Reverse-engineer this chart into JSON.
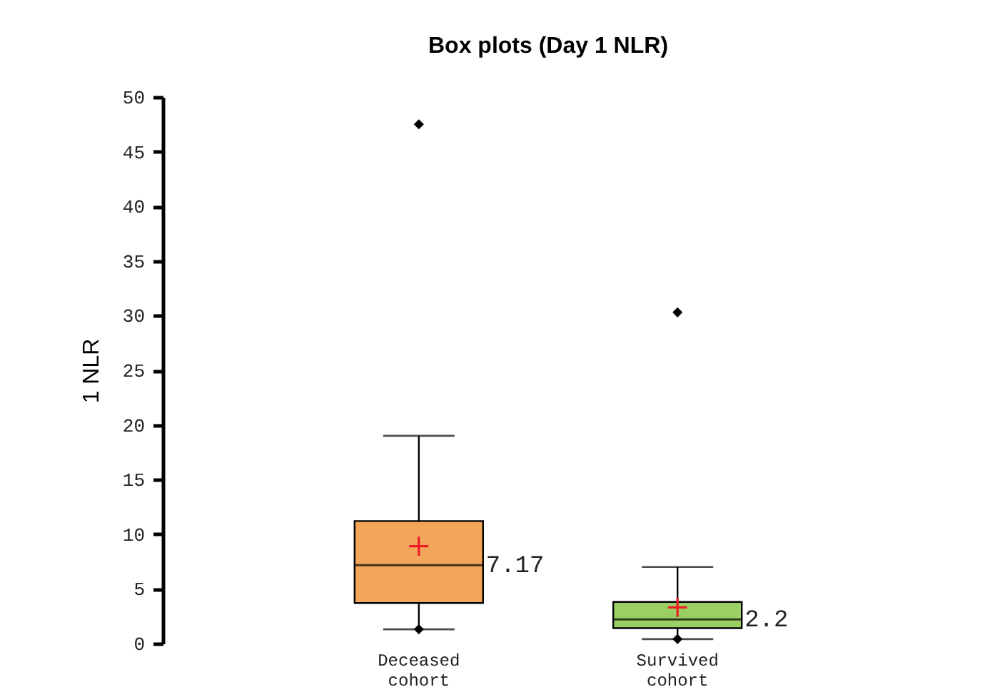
{
  "chart_data": {
    "type": "box",
    "title": "Box plots (Day 1 NLR)",
    "ylabel": "1 NLR",
    "categories": [
      "Deceased cohort",
      "Survived cohort"
    ],
    "colors": [
      "#f2a65a",
      "#9bcf63"
    ],
    "boxes": [
      {
        "low": 1.3,
        "q1": 3.7,
        "median": 7.17,
        "q3": 11.2,
        "high": 19,
        "mean": 8.9,
        "outliers": [
          1.3,
          47.5
        ]
      },
      {
        "low": 0.4,
        "q1": 1.4,
        "median": 2.2,
        "q3": 3.8,
        "high": 7,
        "mean": 3.3,
        "outliers": [
          0.4,
          30.3
        ]
      }
    ],
    "ylim": [
      0,
      50
    ],
    "yticks": [
      0,
      5,
      10,
      15,
      20,
      25,
      30,
      35,
      40,
      45,
      50
    ],
    "annotations": [
      {
        "text": "7.17",
        "x": "Deceased cohort",
        "y": 7.17
      },
      {
        "text": "2.2",
        "x": "Survived cohort",
        "y": 2.2
      }
    ],
    "grid": false
  }
}
